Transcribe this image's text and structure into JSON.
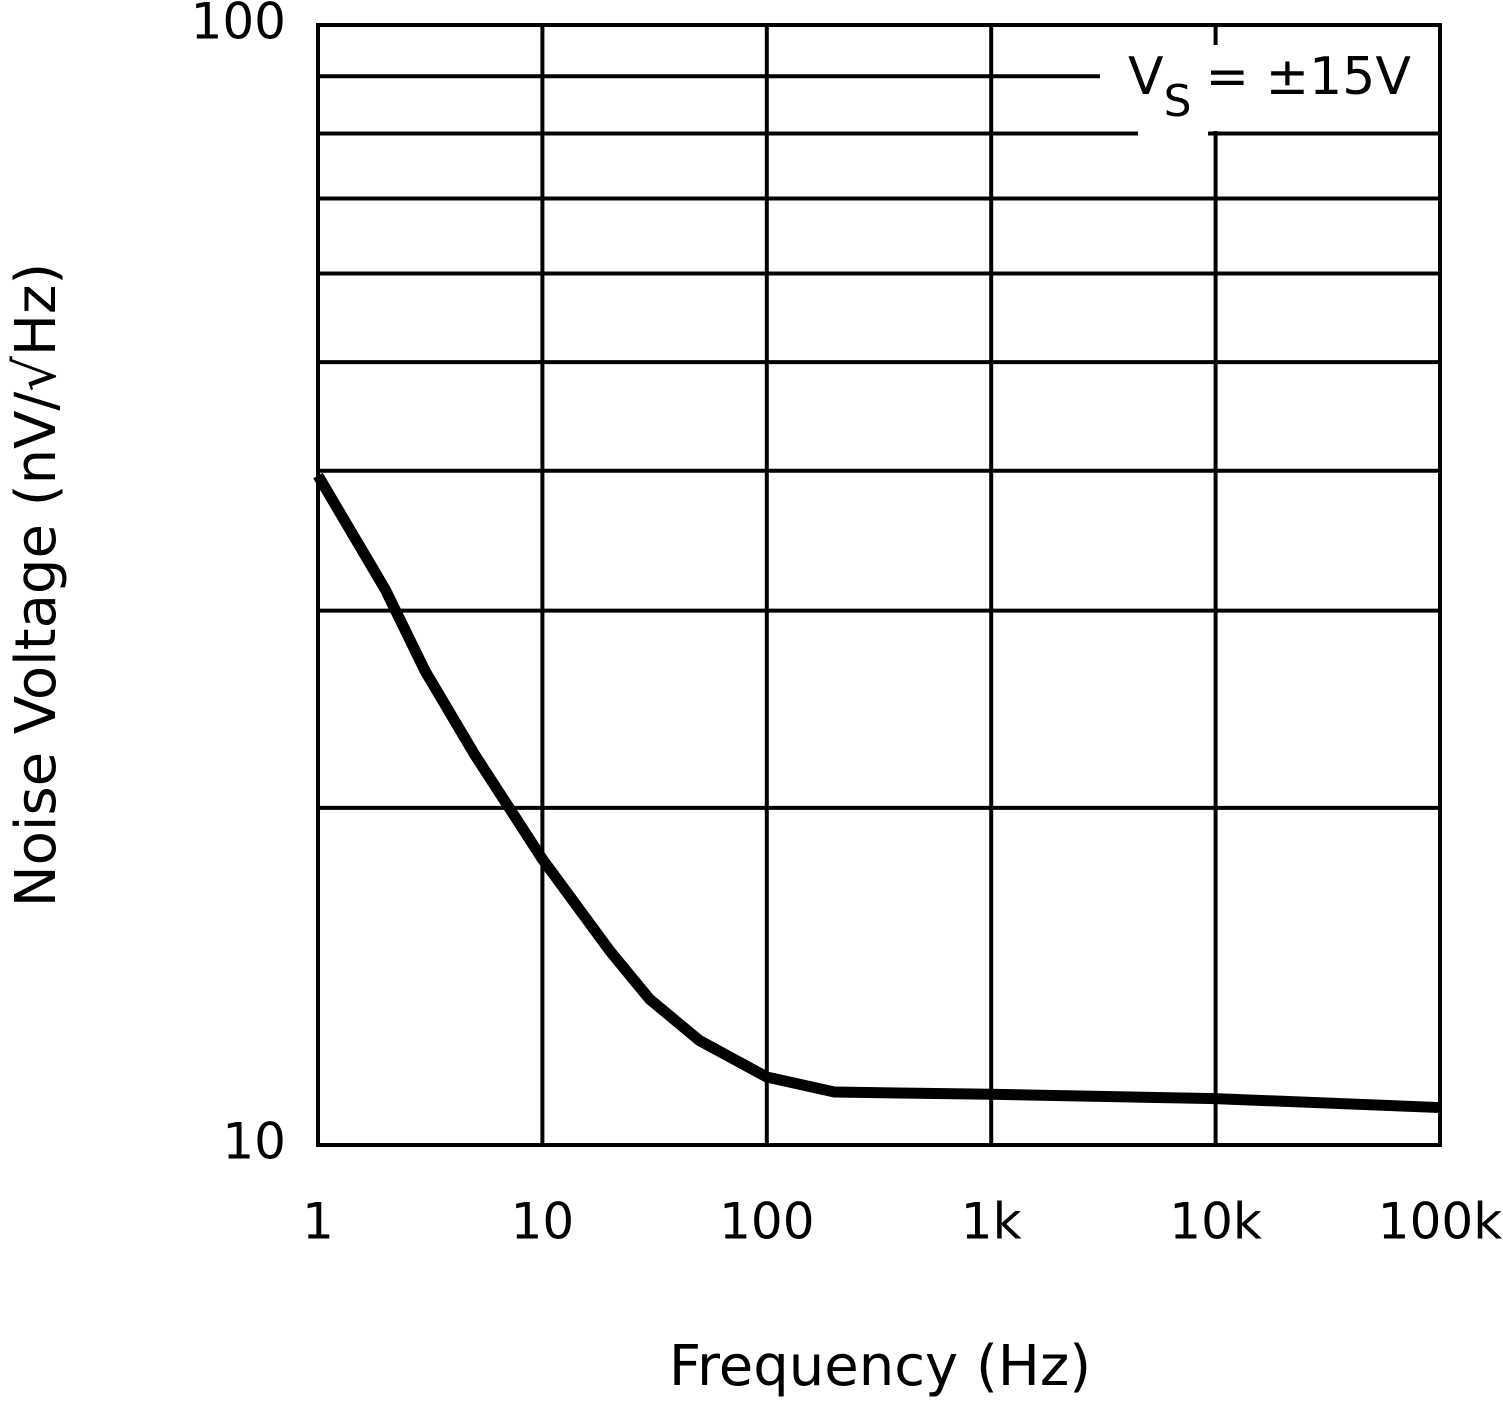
{
  "chart_data": {
    "type": "line",
    "x_label": "Frequency (Hz)",
    "y_label": "Noise Voltage (nV/√Hz)",
    "annotation": {
      "main": "V",
      "subscript": "S",
      "rest": "= ±15V"
    },
    "x_scale": "log",
    "y_scale": "log",
    "grid": true,
    "xlim": [
      1,
      100000
    ],
    "ylim": [
      10,
      100
    ],
    "xticks": [
      1,
      10,
      100,
      {
        "value": 1000,
        "label": "1k"
      },
      {
        "value": 10000,
        "label": "10k"
      },
      {
        "value": 100000,
        "label": "100k"
      }
    ],
    "yticks": [
      10,
      100
    ],
    "minor_yticks": [
      20,
      30,
      40,
      50,
      60,
      70,
      80,
      90
    ],
    "x": [
      1,
      2,
      3,
      5,
      10,
      20,
      30,
      50,
      100,
      200,
      1000,
      10000,
      100000
    ],
    "series": [
      {
        "color": "#000000",
        "values": [
          39.6,
          31.3,
          26.5,
          22.3,
          18,
          14.9,
          13.5,
          12.4,
          11.5,
          11.15,
          11.1,
          11.0,
          10.8
        ]
      }
    ]
  }
}
